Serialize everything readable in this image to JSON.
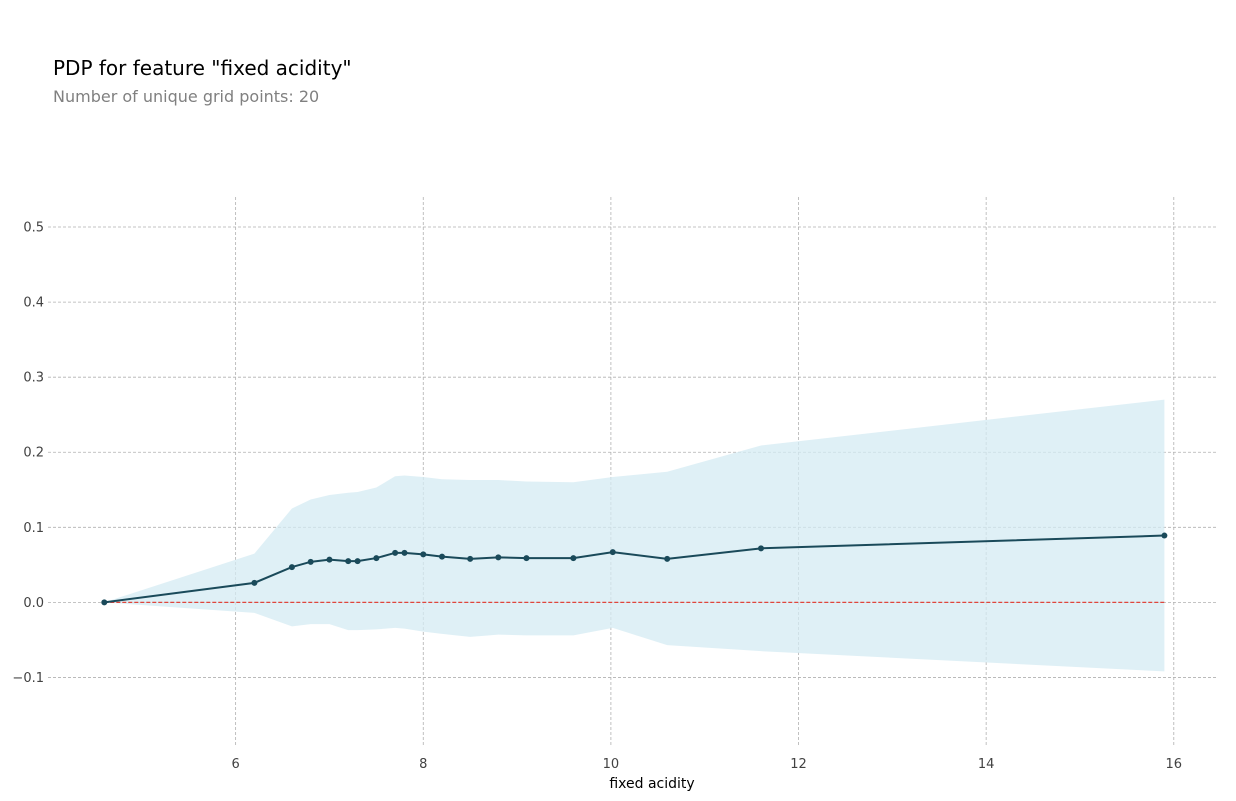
{
  "chart_data": {
    "type": "line",
    "title": "PDP for feature \"fixed acidity\"",
    "subtitle": "Number of unique grid points: 20",
    "xlabel": "fixed acidity",
    "ylabel": "",
    "xlim": [
      4.0,
      16.45
    ],
    "ylim": [
      -0.19,
      0.54
    ],
    "xticks": [
      6,
      8,
      10,
      12,
      14,
      16
    ],
    "yticks": [
      -0.1,
      0.0,
      0.1,
      0.2,
      0.3,
      0.4,
      0.5
    ],
    "ytick_labels": [
      "−0.1",
      "0.0",
      "0.1",
      "0.2",
      "0.3",
      "0.4",
      "0.5"
    ],
    "grid": true,
    "series": [
      {
        "x": [
          4.6,
          6.2,
          6.6,
          6.8,
          7.0,
          7.2,
          7.3,
          7.5,
          7.7,
          7.8,
          8.0,
          8.2,
          8.5,
          8.8,
          9.1,
          9.6,
          10.02,
          10.6,
          11.6,
          15.9
        ],
        "values": [
          0.0,
          0.026,
          0.047,
          0.054,
          0.057,
          0.055,
          0.055,
          0.059,
          0.066,
          0.066,
          0.064,
          0.061,
          0.058,
          0.06,
          0.059,
          0.059,
          0.067,
          0.058,
          0.072,
          0.089
        ],
        "upper": [
          0.0,
          0.065,
          0.125,
          0.137,
          0.143,
          0.146,
          0.147,
          0.153,
          0.168,
          0.169,
          0.167,
          0.164,
          0.163,
          0.163,
          0.161,
          0.16,
          0.167,
          0.174,
          0.209,
          0.27
        ],
        "lower": [
          0.0,
          -0.014,
          -0.032,
          -0.029,
          -0.029,
          -0.037,
          -0.037,
          -0.036,
          -0.034,
          -0.035,
          -0.039,
          -0.042,
          -0.046,
          -0.043,
          -0.044,
          -0.044,
          -0.034,
          -0.057,
          -0.065,
          -0.092
        ]
      }
    ],
    "reference_line": {
      "y": 0.0,
      "style": "dashed"
    },
    "colors": {
      "line": "#1a4a5a",
      "band": "#d4ebf3",
      "reference": "#e0463c",
      "grid": "#b0b0b0"
    }
  }
}
